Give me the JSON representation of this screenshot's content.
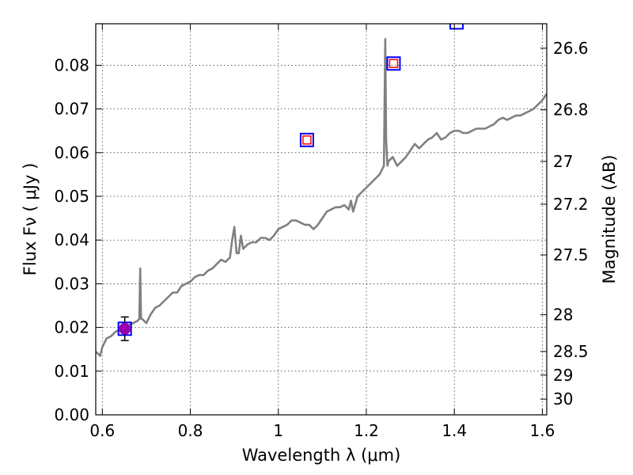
{
  "chart_data": {
    "type": "line",
    "xlabel": "Wavelength  λ (μm)",
    "ylabel": "Flux  Fν  ( μJy )",
    "ylabel2": "Magnitude (AB)",
    "xlim": [
      0.585,
      1.61
    ],
    "ylim": [
      0.0,
      0.0895
    ],
    "grid": true,
    "x_ticks": [
      0.6,
      0.8,
      1.0,
      1.2,
      1.4,
      1.6
    ],
    "x_tick_labels": [
      "0.6",
      "0.8",
      "1",
      "1.2",
      "1.4",
      "1.6"
    ],
    "y_ticks": [
      0.0,
      0.01,
      0.02,
      0.03,
      0.04,
      0.05,
      0.06,
      0.07,
      0.08
    ],
    "y_tick_labels": [
      "0.00",
      "0.01",
      "0.02",
      "0.03",
      "0.04",
      "0.05",
      "0.06",
      "0.07",
      "0.08"
    ],
    "right_axis": {
      "ticks": [
        {
          "label": "26.6",
          "flux": 0.0839
        },
        {
          "label": "26.8",
          "flux": 0.0698
        },
        {
          "label": "27",
          "flux": 0.058
        },
        {
          "label": "27.2",
          "flux": 0.0482
        },
        {
          "label": "27.5",
          "flux": 0.0366
        },
        {
          "label": "28",
          "flux": 0.0229
        },
        {
          "label": "28.5",
          "flux": 0.0145
        },
        {
          "label": "29",
          "flux": 0.0091
        },
        {
          "label": "30",
          "flux": 0.0036
        }
      ]
    },
    "series": [
      {
        "type": "line",
        "color": "#808080",
        "x": [
          0.585,
          0.595,
          0.6,
          0.61,
          0.62,
          0.63,
          0.64,
          0.65,
          0.66,
          0.67,
          0.68,
          0.684,
          0.686,
          0.688,
          0.69,
          0.7,
          0.71,
          0.72,
          0.73,
          0.74,
          0.75,
          0.76,
          0.77,
          0.78,
          0.79,
          0.8,
          0.81,
          0.82,
          0.83,
          0.84,
          0.85,
          0.86,
          0.87,
          0.88,
          0.89,
          0.895,
          0.9,
          0.905,
          0.91,
          0.915,
          0.92,
          0.93,
          0.94,
          0.95,
          0.96,
          0.97,
          0.98,
          0.99,
          1.0,
          1.01,
          1.02,
          1.03,
          1.04,
          1.05,
          1.06,
          1.07,
          1.08,
          1.09,
          1.1,
          1.11,
          1.12,
          1.13,
          1.14,
          1.15,
          1.16,
          1.165,
          1.17,
          1.18,
          1.19,
          1.2,
          1.21,
          1.22,
          1.23,
          1.24,
          1.243,
          1.245,
          1.248,
          1.25,
          1.26,
          1.27,
          1.28,
          1.29,
          1.3,
          1.31,
          1.32,
          1.33,
          1.34,
          1.35,
          1.36,
          1.37,
          1.38,
          1.39,
          1.4,
          1.41,
          1.42,
          1.43,
          1.44,
          1.45,
          1.46,
          1.47,
          1.48,
          1.49,
          1.5,
          1.51,
          1.52,
          1.53,
          1.54,
          1.55,
          1.56,
          1.57,
          1.58,
          1.59,
          1.6,
          1.61
        ],
        "y": [
          0.0145,
          0.0135,
          0.0155,
          0.0175,
          0.018,
          0.019,
          0.0195,
          0.0205,
          0.0205,
          0.021,
          0.0215,
          0.022,
          0.0335,
          0.022,
          0.022,
          0.021,
          0.023,
          0.0245,
          0.025,
          0.026,
          0.027,
          0.028,
          0.028,
          0.0295,
          0.03,
          0.0305,
          0.0315,
          0.032,
          0.032,
          0.033,
          0.0335,
          0.0345,
          0.0355,
          0.035,
          0.036,
          0.04,
          0.043,
          0.037,
          0.037,
          0.041,
          0.038,
          0.039,
          0.0395,
          0.0395,
          0.0405,
          0.0405,
          0.04,
          0.041,
          0.0425,
          0.043,
          0.0435,
          0.0445,
          0.0445,
          0.044,
          0.0435,
          0.0435,
          0.0425,
          0.0435,
          0.045,
          0.0465,
          0.047,
          0.0475,
          0.0475,
          0.048,
          0.047,
          0.049,
          0.0465,
          0.05,
          0.051,
          0.052,
          0.053,
          0.054,
          0.055,
          0.057,
          0.086,
          0.063,
          0.057,
          0.058,
          0.059,
          0.057,
          0.058,
          0.059,
          0.0605,
          0.062,
          0.061,
          0.062,
          0.063,
          0.0635,
          0.0645,
          0.063,
          0.0635,
          0.0645,
          0.065,
          0.065,
          0.0645,
          0.0645,
          0.065,
          0.0655,
          0.0655,
          0.0655,
          0.066,
          0.0665,
          0.0675,
          0.068,
          0.0675,
          0.068,
          0.0685,
          0.0685,
          0.069,
          0.0695,
          0.07,
          0.071,
          0.072,
          0.0735
        ]
      },
      {
        "type": "scatter",
        "marker": "open-square",
        "edge_color": "#0000ff",
        "x": [
          0.651,
          1.065,
          1.262,
          1.405
        ],
        "y": [
          0.0197,
          0.0629,
          0.0804,
          0.0898
        ]
      },
      {
        "type": "scatter",
        "marker": "small-open-square",
        "edge_color": "#ff0000",
        "x": [
          1.065,
          1.262
        ],
        "y": [
          0.0629,
          0.0804
        ]
      },
      {
        "type": "scatter",
        "marker": "filled-circle",
        "color": "#9900aa",
        "x": [
          0.651
        ],
        "y": [
          0.0197
        ],
        "yerr": [
          0.0027
        ]
      }
    ]
  }
}
